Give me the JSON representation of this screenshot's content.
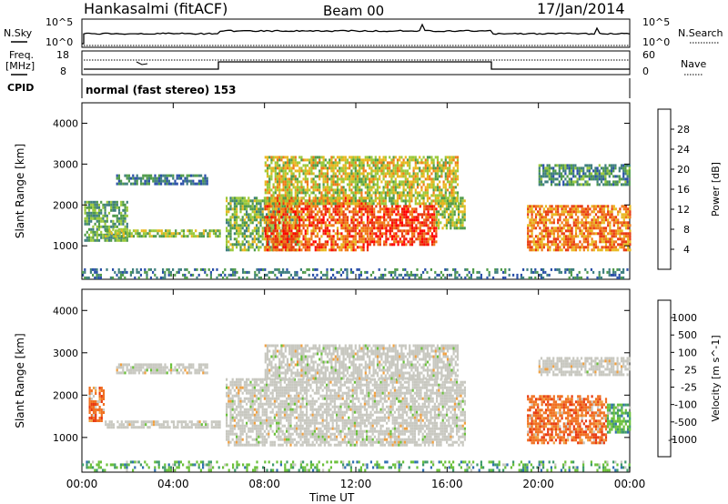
{
  "header": {
    "site": "Hankasalmi (fitACF)",
    "beam": "Beam 00",
    "date": "17/Jan/2014",
    "mode": "normal (fast stereo) 153"
  },
  "labels": {
    "nsky": "N.Sky",
    "nsearch": "N.Search",
    "freq_line1": "Freq.",
    "freq_line2": "[MHz]",
    "nave": "Nave",
    "cpid": "CPID",
    "nsky_ticks": [
      "10^5",
      "10^0"
    ],
    "nsearch_ticks": [
      "10^5",
      "10^0"
    ],
    "freq_ticks": [
      "18",
      "8"
    ],
    "nave_ticks": [
      "60",
      "0"
    ]
  },
  "colors": {
    "power_scale": [
      "#1a1aff",
      "#2a4fa8",
      "#3f7f7f",
      "#4f9a4a",
      "#9ac93a",
      "#e8b820",
      "#f07a18",
      "#e83a10",
      "#ff0000"
    ],
    "velocity_scale": [
      "#1e3ca8",
      "#2f6fb0",
      "#3f9a6a",
      "#6ac03a",
      "#c8c8c0",
      "#c8c8c0",
      "#f0a040",
      "#f07020",
      "#e83a10",
      "#ff0000"
    ],
    "nsky_line": "#000000"
  },
  "chart_data": [
    {
      "type": "heatmap",
      "panel": "power",
      "xlabel": "",
      "ylabel": "Slant Range [km]",
      "x_ticks": [
        "00:00",
        "04:00",
        "08:00",
        "12:00",
        "16:00",
        "20:00",
        "00:00"
      ],
      "xlim": [
        0,
        24
      ],
      "y_ticks": [
        1000,
        2000,
        3000,
        4000
      ],
      "ylim": [
        180,
        4500
      ],
      "colorbar": {
        "label": "Power [dB]",
        "ticks": [
          4,
          8,
          12,
          16,
          20,
          24,
          28
        ],
        "range": [
          0,
          32
        ]
      },
      "regions": [
        {
          "x": [
            0.1,
            2.0
          ],
          "y": [
            1150,
            2100
          ],
          "level": 12
        },
        {
          "x": [
            1.5,
            5.5
          ],
          "y": [
            2500,
            2750
          ],
          "level": 8
        },
        {
          "x": [
            1.0,
            6.0
          ],
          "y": [
            1200,
            1400
          ],
          "level": 16
        },
        {
          "x": [
            6.3,
            9.5
          ],
          "y": [
            900,
            2200
          ],
          "level": 14
        },
        {
          "x": [
            8.0,
            12.5
          ],
          "y": [
            900,
            2200
          ],
          "level": 26
        },
        {
          "x": [
            12.5,
            15.5
          ],
          "y": [
            1000,
            2000
          ],
          "level": 28
        },
        {
          "x": [
            8.0,
            16.5
          ],
          "y": [
            2000,
            3200
          ],
          "level": 18
        },
        {
          "x": [
            15.5,
            16.8
          ],
          "y": [
            1400,
            2200
          ],
          "level": 16
        },
        {
          "x": [
            19.5,
            24.0
          ],
          "y": [
            900,
            2000
          ],
          "level": 24
        },
        {
          "x": [
            20.0,
            24.0
          ],
          "y": [
            2500,
            3000
          ],
          "level": 10
        },
        {
          "x": [
            0.0,
            24.0
          ],
          "y": [
            200,
            450
          ],
          "level": 8
        }
      ]
    },
    {
      "type": "heatmap",
      "panel": "velocity",
      "xlabel": "Time UT",
      "ylabel": "Slant Range [km]",
      "x_ticks": [
        "00:00",
        "04:00",
        "08:00",
        "12:00",
        "16:00",
        "20:00",
        "00:00"
      ],
      "xlim": [
        0,
        24
      ],
      "y_ticks": [
        1000,
        2000,
        3000,
        4000
      ],
      "ylim": [
        180,
        4500
      ],
      "colorbar": {
        "label": "Velocity [m s^-1]",
        "ticks": [
          1000,
          500,
          100,
          25,
          -25,
          -100,
          -500,
          -1000
        ]
      },
      "regions": [
        {
          "x": [
            0.3,
            1.0
          ],
          "y": [
            1400,
            2200
          ],
          "level": -500
        },
        {
          "x": [
            1.5,
            5.5
          ],
          "y": [
            2500,
            2750
          ],
          "level": 0
        },
        {
          "x": [
            1.0,
            6.0
          ],
          "y": [
            1250,
            1400
          ],
          "level": 0
        },
        {
          "x": [
            6.3,
            16.8
          ],
          "y": [
            850,
            2400
          ],
          "level": 0
        },
        {
          "x": [
            8.0,
            16.5
          ],
          "y": [
            2400,
            3200
          ],
          "level": 0
        },
        {
          "x": [
            19.5,
            23.0
          ],
          "y": [
            900,
            2000
          ],
          "level": -300
        },
        {
          "x": [
            23.0,
            24.0
          ],
          "y": [
            1100,
            1800
          ],
          "level": 300
        },
        {
          "x": [
            20.0,
            24.0
          ],
          "y": [
            2500,
            2900
          ],
          "level": 0
        },
        {
          "x": [
            0.0,
            24.0
          ],
          "y": [
            200,
            450
          ],
          "level": 100
        }
      ]
    }
  ]
}
